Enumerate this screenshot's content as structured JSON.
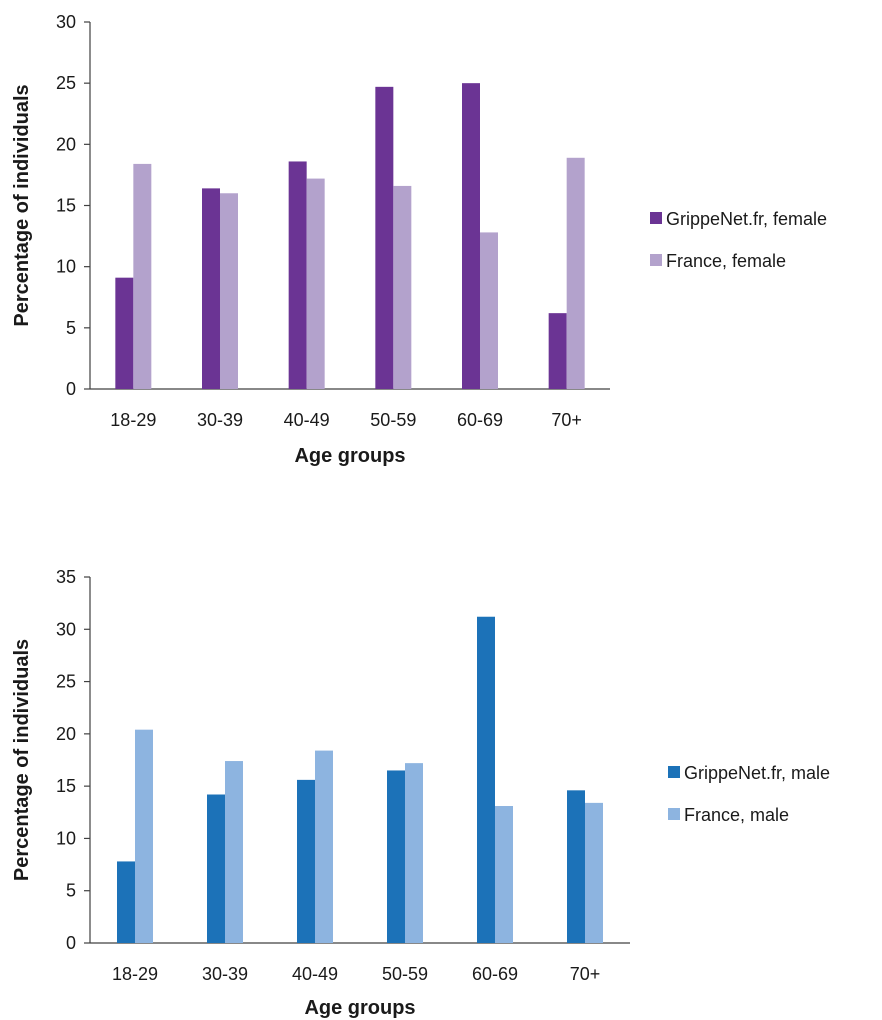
{
  "chart_data": [
    {
      "type": "bar",
      "categories": [
        "18-29",
        "30-39",
        "40-49",
        "50-59",
        "60-69",
        "70+"
      ],
      "series": [
        {
          "name": "GrippeNet.fr, female",
          "values": [
            9.1,
            16.4,
            18.6,
            24.7,
            25.0,
            6.2
          ]
        },
        {
          "name": "France, female",
          "values": [
            18.4,
            16.0,
            17.2,
            16.6,
            12.8,
            18.9
          ]
        }
      ],
      "colors": [
        "#6B3494",
        "#B3A2CC"
      ],
      "xlabel": "Age groups",
      "ylabel": "Percentage  of individuals",
      "ylim": [
        0,
        30
      ],
      "yticks": [
        "0",
        "5",
        "10",
        "15",
        "20",
        "25",
        "30"
      ],
      "legend_position": "right",
      "grid": false
    },
    {
      "type": "bar",
      "categories": [
        "18-29",
        "30-39",
        "40-49",
        "50-59",
        "60-69",
        "70+"
      ],
      "series": [
        {
          "name": "GrippeNet.fr, male",
          "values": [
            7.8,
            14.2,
            15.6,
            16.5,
            31.2,
            14.6
          ]
        },
        {
          "name": "France, male",
          "values": [
            20.4,
            17.4,
            18.4,
            17.2,
            13.1,
            13.4
          ]
        }
      ],
      "colors": [
        "#1C72B8",
        "#8DB4E0"
      ],
      "xlabel": "Age groups",
      "ylabel": "Percentage of individuals",
      "ylim": [
        0,
        35
      ],
      "yticks": [
        "0",
        "5",
        "10",
        "15",
        "20",
        "25",
        "30",
        "35"
      ],
      "legend_position": "right",
      "grid": false
    }
  ]
}
